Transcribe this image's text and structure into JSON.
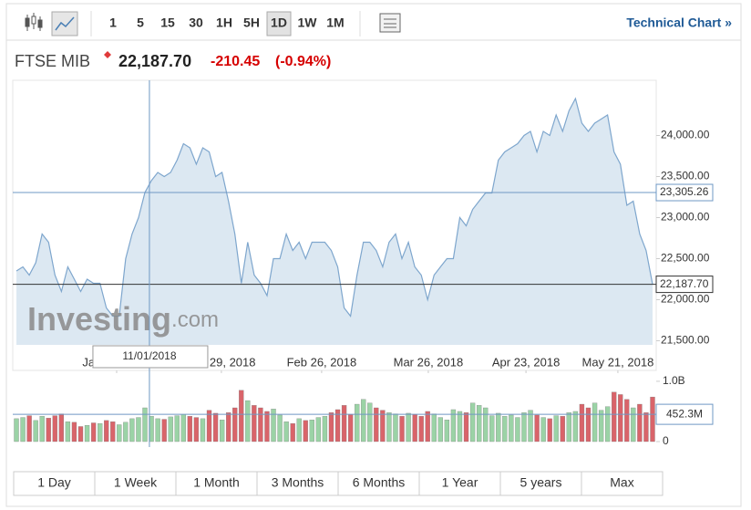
{
  "toolbar": {
    "intervals": [
      "1",
      "5",
      "15",
      "30",
      "1H",
      "5H",
      "1D",
      "1W",
      "1M"
    ],
    "active": "1D",
    "link": "Technical Chart »"
  },
  "header": {
    "name": "FTSE MIB",
    "price": "22,187.70",
    "change": "-210.45",
    "change_pct": "(-0.94%)"
  },
  "watermark": {
    "brand": "Investing",
    "suffix": ".com"
  },
  "ranges": [
    "1 Day",
    "1 Week",
    "1 Month",
    "3 Months",
    "6 Months",
    "1 Year",
    "5 years",
    "Max"
  ],
  "chart_data": [
    {
      "type": "area",
      "line_color": "#7ea6cd",
      "fill_color": "#dce8f2",
      "values": [
        22350,
        22400,
        22300,
        22450,
        22800,
        22700,
        22300,
        22100,
        22400,
        22250,
        22100,
        22250,
        22200,
        22200,
        21900,
        21800,
        21800,
        22500,
        22800,
        23000,
        23305,
        23450,
        23550,
        23500,
        23550,
        23700,
        23900,
        23850,
        23650,
        23850,
        23800,
        23500,
        23550,
        23200,
        22800,
        22200,
        22700,
        22300,
        22200,
        22050,
        22500,
        22500,
        22800,
        22600,
        22700,
        22500,
        22700,
        22700,
        22700,
        22600,
        22400,
        21900,
        21800,
        22300,
        22700,
        22700,
        22600,
        22400,
        22700,
        22800,
        22500,
        22700,
        22400,
        22300,
        22000,
        22300,
        22400,
        22500,
        22500,
        23000,
        22900,
        23100,
        23200,
        23300,
        23300,
        23700,
        23800,
        23850,
        23900,
        24000,
        24050,
        23800,
        24050,
        24000,
        24250,
        24050,
        24300,
        24450,
        24150,
        24050,
        24150,
        24200,
        24250,
        23800,
        23650,
        23150,
        23200,
        22800,
        22600,
        22187.7
      ],
      "xticks": [
        {
          "value": 15.6,
          "label": "Jan 01, 2018"
        },
        {
          "value": 31.9,
          "label": "Jan 29, 2018"
        },
        {
          "value": 47.5,
          "label": "Feb 26, 2018"
        },
        {
          "value": 64.1,
          "label": "Mar 26, 2018"
        },
        {
          "value": 79.3,
          "label": "Apr 23, 2018"
        },
        {
          "value": 93.6,
          "label": "May 21, 2018"
        }
      ],
      "ylim": [
        21450,
        24650
      ],
      "yticks": [
        {
          "value": 21500,
          "label": "21,500.00"
        },
        {
          "value": 22000,
          "label": "22,000.00"
        },
        {
          "value": 22500,
          "label": "22,500.00"
        },
        {
          "value": 23000,
          "label": "23,000.00"
        },
        {
          "value": 23500,
          "label": "23,500.00"
        },
        {
          "value": 24000,
          "label": "24,000.00"
        }
      ],
      "crosshair": {
        "x": 20.7,
        "value": 23305.26,
        "label": "23,305.26",
        "date": "11/01/2018"
      },
      "last": {
        "value": 22187.7,
        "label": "22,187.70"
      }
    },
    {
      "type": "bar",
      "values": [
        380000000,
        400000000,
        430000000,
        350000000,
        420000000,
        390000000,
        430000000,
        460000000,
        330000000,
        320000000,
        250000000,
        270000000,
        310000000,
        300000000,
        350000000,
        330000000,
        280000000,
        320000000,
        380000000,
        400000000,
        560000000,
        420000000,
        380000000,
        370000000,
        410000000,
        430000000,
        450000000,
        420000000,
        400000000,
        380000000,
        520000000,
        470000000,
        360000000,
        480000000,
        560000000,
        850000000,
        680000000,
        600000000,
        560000000,
        500000000,
        540000000,
        440000000,
        330000000,
        300000000,
        380000000,
        350000000,
        360000000,
        400000000,
        420000000,
        480000000,
        530000000,
        600000000,
        450000000,
        620000000,
        700000000,
        640000000,
        560000000,
        520000000,
        480000000,
        460000000,
        420000000,
        470000000,
        450000000,
        420000000,
        500000000,
        460000000,
        400000000,
        360000000,
        530000000,
        500000000,
        480000000,
        640000000,
        600000000,
        560000000,
        430000000,
        470000000,
        420000000,
        440000000,
        400000000,
        480000000,
        520000000,
        440000000,
        400000000,
        380000000,
        430000000,
        420000000,
        480000000,
        500000000,
        620000000,
        560000000,
        640000000,
        520000000,
        580000000,
        820000000,
        780000000,
        700000000,
        560000000,
        620000000,
        480000000,
        740000000
      ],
      "colors": [
        "#9bd3a6",
        "#9bd3a6",
        "#d9646a",
        "#9bd3a6",
        "#9bd3a6",
        "#d9646a",
        "#d9646a",
        "#d9646a",
        "#9bd3a6",
        "#d9646a",
        "#d9646a",
        "#9bd3a6",
        "#d9646a",
        "#9bd3a6",
        "#d9646a",
        "#d9646a",
        "#9bd3a6",
        "#9bd3a6",
        "#9bd3a6",
        "#9bd3a6",
        "#9bd3a6",
        "#9bd3a6",
        "#9bd3a6",
        "#d9646a",
        "#9bd3a6",
        "#9bd3a6",
        "#9bd3a6",
        "#d9646a",
        "#d9646a",
        "#9bd3a6",
        "#d9646a",
        "#d9646a",
        "#9bd3a6",
        "#d9646a",
        "#d9646a",
        "#d9646a",
        "#9bd3a6",
        "#d9646a",
        "#d9646a",
        "#d9646a",
        "#9bd3a6",
        "#9bd3a6",
        "#9bd3a6",
        "#d9646a",
        "#9bd3a6",
        "#d9646a",
        "#9bd3a6",
        "#9bd3a6",
        "#9bd3a6",
        "#d9646a",
        "#d9646a",
        "#d9646a",
        "#d9646a",
        "#9bd3a6",
        "#9bd3a6",
        "#9bd3a6",
        "#d9646a",
        "#d9646a",
        "#9bd3a6",
        "#9bd3a6",
        "#d9646a",
        "#9bd3a6",
        "#d9646a",
        "#d9646a",
        "#d9646a",
        "#9bd3a6",
        "#9bd3a6",
        "#9bd3a6",
        "#9bd3a6",
        "#9bd3a6",
        "#d9646a",
        "#9bd3a6",
        "#9bd3a6",
        "#9bd3a6",
        "#9bd3a6",
        "#9bd3a6",
        "#9bd3a6",
        "#9bd3a6",
        "#9bd3a6",
        "#9bd3a6",
        "#9bd3a6",
        "#d9646a",
        "#9bd3a6",
        "#d9646a",
        "#9bd3a6",
        "#d9646a",
        "#9bd3a6",
        "#9bd3a6",
        "#d9646a",
        "#d9646a",
        "#9bd3a6",
        "#9bd3a6",
        "#9bd3a6",
        "#d9646a",
        "#d9646a",
        "#d9646a",
        "#9bd3a6",
        "#d9646a",
        "#d9646a",
        "#d9646a"
      ],
      "ylim": [
        0,
        1150000000
      ],
      "yticks": [
        0,
        {
          "value": 1000000000,
          "label": "1.0B"
        }
      ],
      "crosshair": {
        "value": 452300000,
        "label": "452.3M"
      }
    }
  ]
}
